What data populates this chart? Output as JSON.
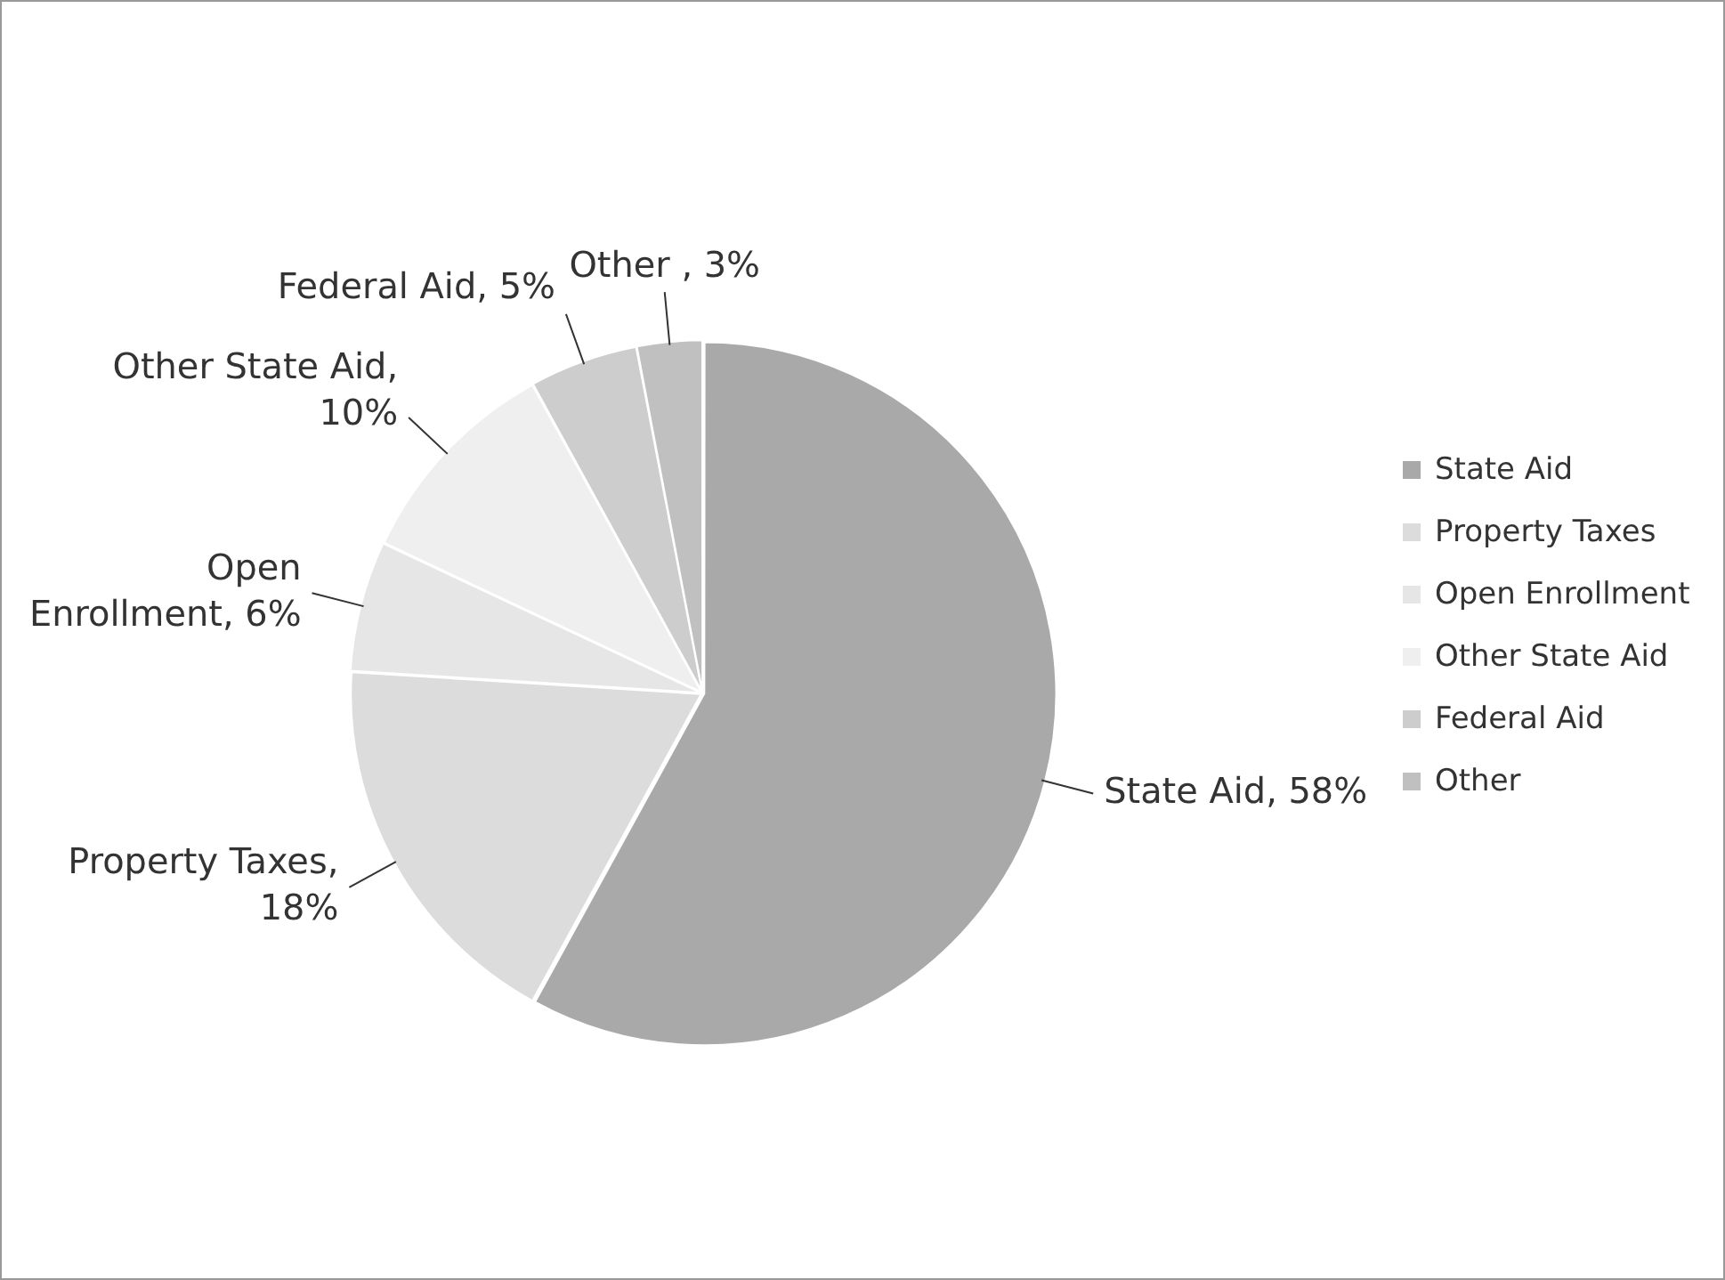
{
  "chart_data": {
    "type": "pie",
    "categories": [
      "State Aid",
      "Property Taxes",
      "Open Enrollment",
      "Other State Aid",
      "Federal Aid",
      "Other"
    ],
    "values": [
      58,
      18,
      6,
      10,
      5,
      3
    ],
    "colors": [
      "#a9a9a9",
      "#dcdcdc",
      "#e6e6e6",
      "#efefef",
      "#cdcdcd",
      "#c0c0c0"
    ],
    "value_labels": [
      "State Aid, 58%",
      "Property Taxes,\n18%",
      "Open\nEnrollment, 6%",
      "Other State Aid,\n10%",
      "Federal Aid, 5%",
      "Other , 3%"
    ],
    "legend": "right"
  }
}
